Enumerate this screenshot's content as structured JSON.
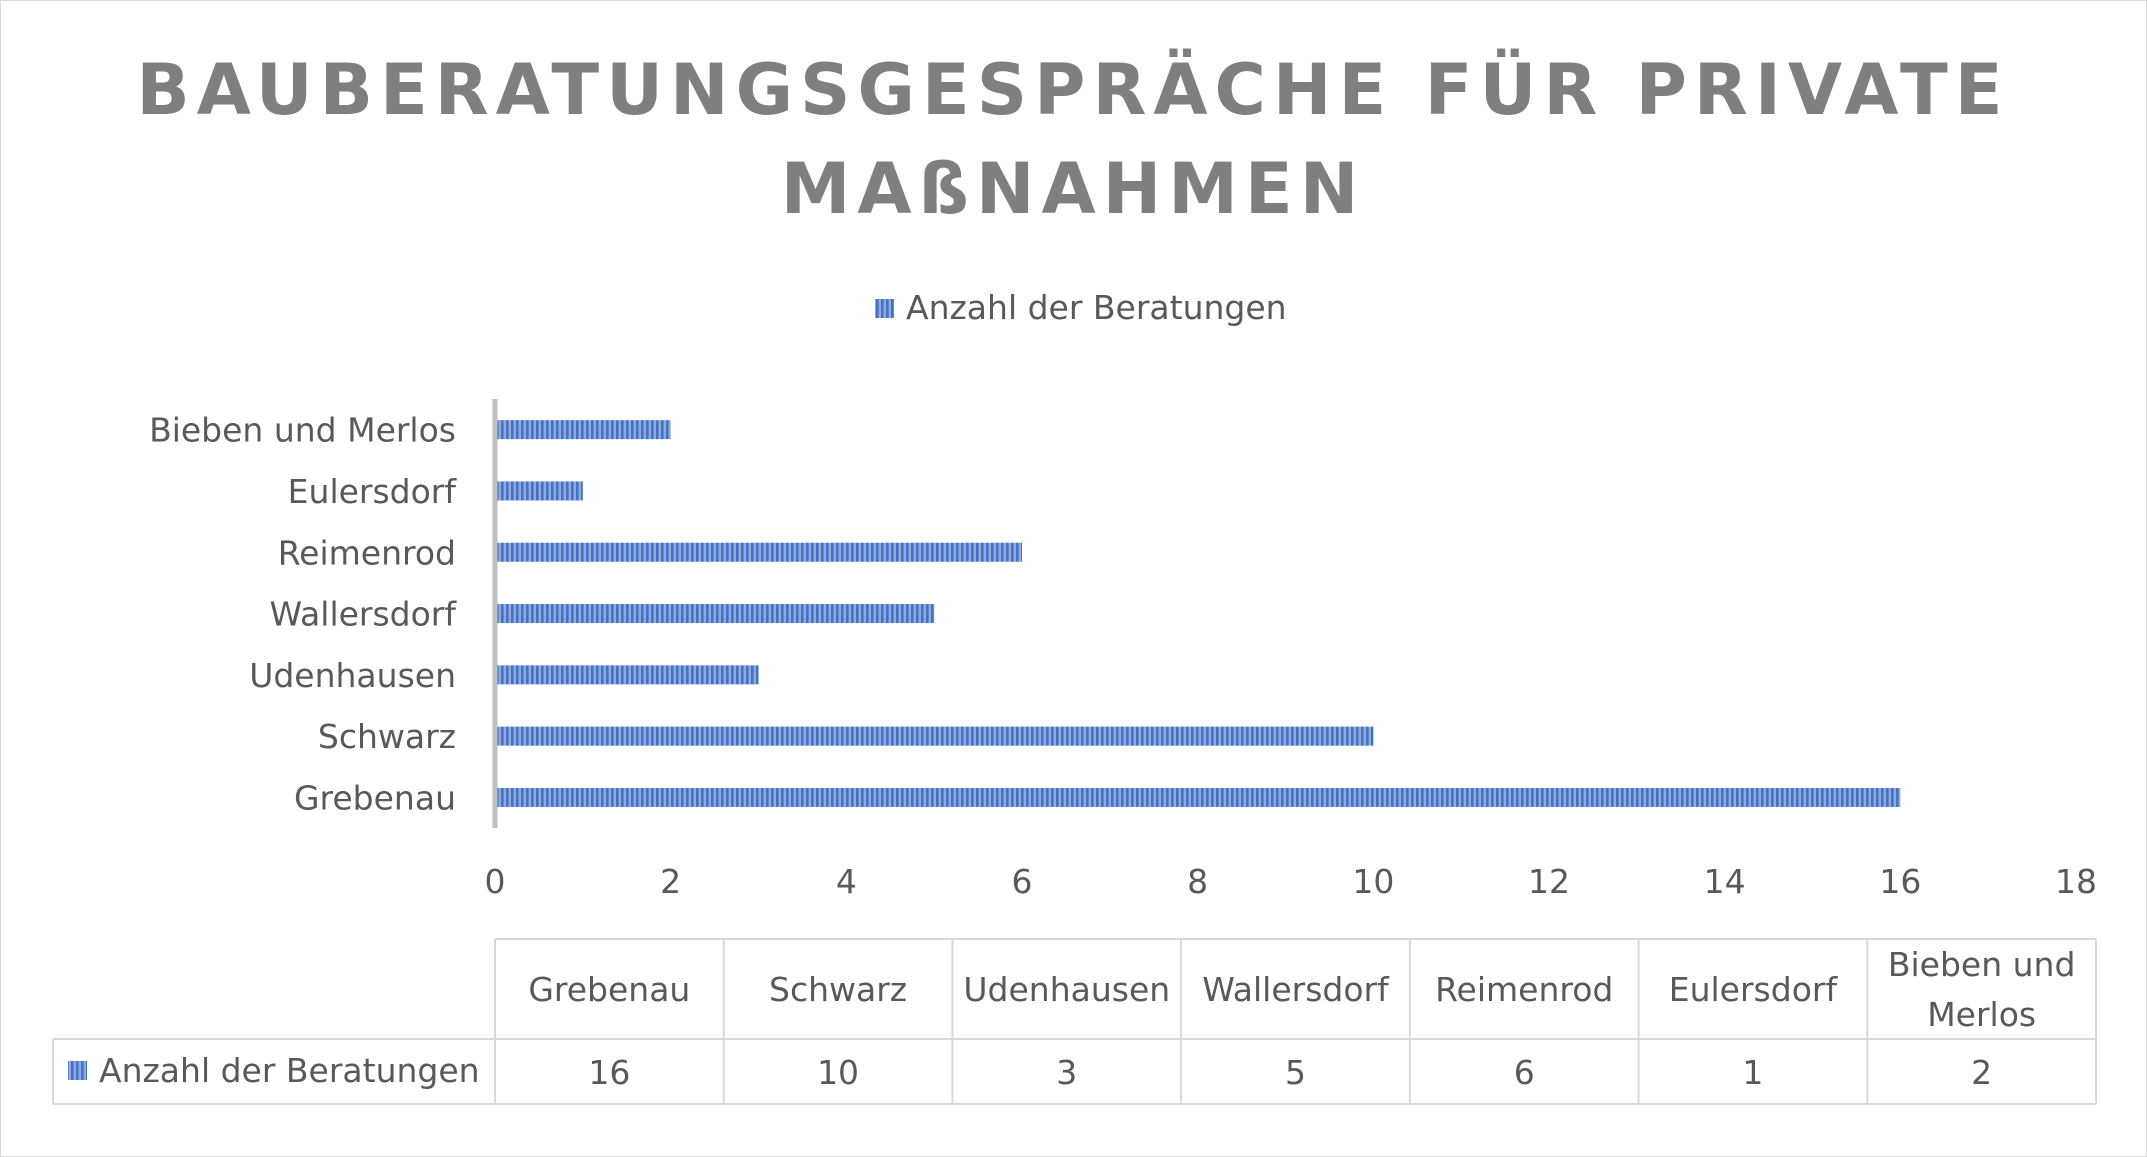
{
  "chart_data": {
    "type": "bar",
    "orientation": "horizontal",
    "title_lines": [
      "BAUBERATUNGSGESPRÄCHE FÜR PRIVATE",
      "MAßNAHMEN"
    ],
    "categories": [
      "Grebenau",
      "Schwarz",
      "Udenhausen",
      "Wallersdorf",
      "Reimenrod",
      "Eulersdorf",
      "Bieben und Merlos"
    ],
    "series": [
      {
        "name": "Anzahl der Beratungen",
        "values": [
          16,
          10,
          3,
          5,
          6,
          1,
          2
        ]
      }
    ],
    "xlim": [
      0,
      18
    ],
    "xticks": [
      0,
      2,
      4,
      6,
      8,
      10,
      12,
      14,
      16,
      18
    ],
    "grid": false,
    "legend_position": "top-center",
    "data_table": true,
    "table_header_labels": [
      "Grebenau",
      "Schwarz",
      "Udenhausen",
      "Wallersdorf",
      "Reimenrod",
      "Eulersdorf",
      [
        "Bieben und",
        "Merlos"
      ]
    ],
    "colors": {
      "bar": "#4472c4",
      "bar_stripe": "#8faadc",
      "axis": "#bfbfbf",
      "text": "#595959",
      "title": "#7f7f7f"
    }
  }
}
